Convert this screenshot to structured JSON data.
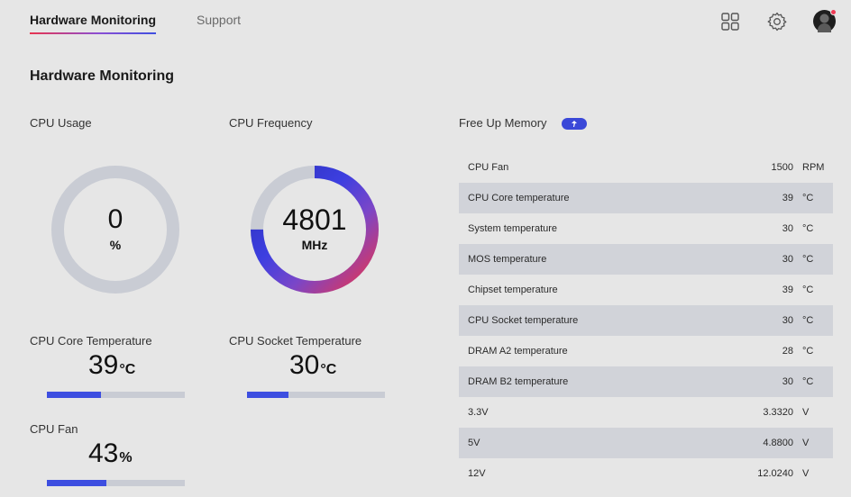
{
  "nav": {
    "tabs": [
      {
        "label": "Hardware Monitoring",
        "active": true
      },
      {
        "label": "Support",
        "active": false
      }
    ],
    "icons": [
      "apps-grid-icon",
      "gear-icon",
      "avatar"
    ],
    "notification_color": "#ef3a55"
  },
  "page": {
    "title": "Hardware Monitoring"
  },
  "cpu_usage": {
    "label": "CPU Usage",
    "value": "0",
    "unit": "%",
    "percent": 0
  },
  "cpu_frequency": {
    "label": "CPU Frequency",
    "value": "4801",
    "unit": "MHz",
    "fraction": 0.75
  },
  "cpu_core_temp": {
    "label": "CPU Core Temperature",
    "value": "39",
    "unit": "°C",
    "level": 0.39
  },
  "cpu_socket_temp": {
    "label": "CPU Socket Temperature",
    "value": "30",
    "unit": "°C",
    "level": 0.3
  },
  "cpu_fan": {
    "label": "CPU Fan",
    "value": "43",
    "unit": "%",
    "level": 0.43
  },
  "memory": {
    "label": "Free Up Memory"
  },
  "sensors": [
    {
      "name": "CPU Fan",
      "value": "1500",
      "unit": "RPM"
    },
    {
      "name": "CPU Core temperature",
      "value": "39",
      "unit": "°C"
    },
    {
      "name": "System temperature",
      "value": "30",
      "unit": "°C"
    },
    {
      "name": "MOS temperature",
      "value": "30",
      "unit": "°C"
    },
    {
      "name": "Chipset temperature",
      "value": "39",
      "unit": "°C"
    },
    {
      "name": "CPU Socket temperature",
      "value": "30",
      "unit": "°C"
    },
    {
      "name": "DRAM A2 temperature",
      "value": "28",
      "unit": "°C"
    },
    {
      "name": "DRAM B2 temperature",
      "value": "30",
      "unit": "°C"
    },
    {
      "name": "3.3V",
      "value": "3.3320",
      "unit": "V"
    },
    {
      "name": "5V",
      "value": "4.8800",
      "unit": "V"
    },
    {
      "name": "12V",
      "value": "12.0240",
      "unit": "V"
    }
  ],
  "colors": {
    "accent_blue": "#3d4ee0",
    "accent_red": "#e8344f",
    "track": "#c9ccd4",
    "background": "#e6e6e6"
  }
}
